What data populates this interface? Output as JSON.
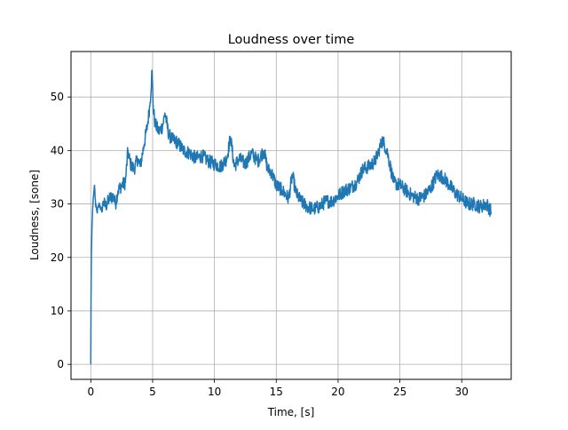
{
  "chart_data": {
    "type": "line",
    "title": "Loudness over time",
    "xlabel": "Time, [s]",
    "ylabel": "Loudness, [sone]",
    "xlim": [
      -1.6,
      34.0
    ],
    "ylim": [
      -2.8,
      58.5
    ],
    "xticks": [
      0,
      5,
      10,
      15,
      20,
      25,
      30
    ],
    "yticks": [
      0,
      10,
      20,
      30,
      40,
      50
    ],
    "grid": true,
    "legend": "none",
    "series": [
      {
        "color": "#1f77b4",
        "x": [
          0.0,
          0.02,
          0.05,
          0.1,
          0.15,
          0.2,
          0.3,
          0.4,
          0.5,
          0.7,
          0.9,
          1.0,
          1.2,
          1.5,
          1.8,
          2.0,
          2.2,
          2.5,
          2.8,
          3.0,
          3.2,
          3.5,
          3.8,
          4.0,
          4.3,
          4.6,
          4.8,
          4.95,
          5.05,
          5.2,
          5.5,
          5.8,
          6.0,
          6.3,
          6.6,
          7.0,
          7.5,
          8.0,
          8.5,
          9.0,
          9.5,
          10.0,
          10.5,
          11.0,
          11.3,
          11.6,
          12.0,
          12.5,
          13.0,
          13.5,
          14.0,
          14.3,
          14.6,
          15.0,
          15.5,
          16.0,
          16.3,
          16.6,
          17.0,
          17.5,
          18.0,
          18.5,
          19.0,
          19.5,
          20.0,
          20.5,
          21.0,
          21.5,
          22.0,
          22.5,
          23.0,
          23.3,
          23.6,
          24.0,
          24.5,
          25.0,
          25.5,
          26.0,
          26.5,
          27.0,
          27.5,
          28.0,
          28.5,
          29.0,
          29.5,
          30.0,
          30.5,
          31.0,
          31.5,
          32.0,
          32.4
        ],
        "y": [
          0.0,
          12.0,
          20.5,
          26.0,
          29.0,
          31.0,
          33.5,
          29.5,
          28.5,
          30.0,
          28.5,
          30.5,
          29.5,
          31.0,
          31.5,
          30.0,
          32.5,
          33.5,
          34.0,
          40.0,
          37.5,
          36.5,
          38.5,
          37.0,
          41.0,
          45.0,
          49.0,
          55.0,
          48.0,
          45.0,
          43.5,
          44.5,
          47.0,
          43.0,
          42.0,
          41.5,
          40.0,
          39.5,
          38.5,
          39.0,
          38.0,
          37.5,
          37.0,
          38.5,
          42.5,
          37.0,
          38.5,
          37.5,
          39.5,
          38.0,
          40.0,
          36.5,
          36.0,
          33.5,
          32.5,
          31.0,
          35.5,
          32.0,
          30.5,
          29.5,
          29.0,
          29.5,
          30.5,
          30.5,
          31.5,
          32.5,
          33.0,
          34.0,
          36.5,
          37.0,
          38.0,
          40.0,
          42.0,
          39.5,
          34.0,
          33.5,
          32.5,
          31.5,
          31.0,
          31.5,
          33.0,
          35.5,
          35.0,
          33.5,
          32.0,
          31.0,
          30.0,
          30.0,
          29.5,
          30.0,
          28.5
        ]
      }
    ]
  }
}
